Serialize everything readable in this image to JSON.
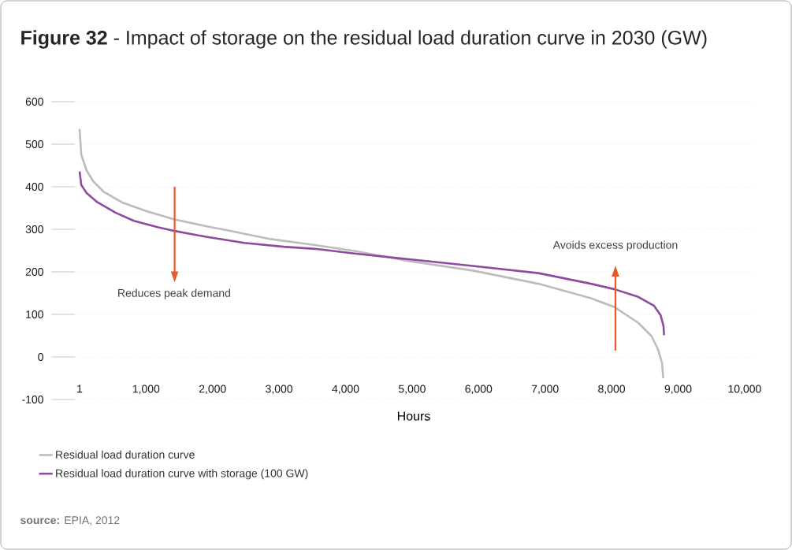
{
  "chart_data": {
    "type": "line",
    "title": "**Figure 32** - Impact of storage on the residual load duration curve in 2030 (GW)",
    "xlabel": "Hours",
    "series": [
      {
        "name": "Residual load duration curve",
        "color": "#bcbcbe",
        "x": [
          1,
          27,
          107,
          205,
          364,
          640,
          1016,
          1430,
          1884,
          2279,
          2871,
          3543,
          4136,
          4926,
          5913,
          6900,
          7691,
          8046,
          8402,
          8599,
          8698,
          8757,
          8777
        ],
        "values": [
          536,
          475,
          438,
          413,
          388,
          363,
          342,
          323,
          308,
          296,
          277,
          263,
          249,
          226,
          203,
          172,
          138,
          117,
          80,
          49,
          18,
          -13,
          -50
        ]
      },
      {
        "name": "Residual load duration curve with storage (100 GW)",
        "color": "#8e4a9e",
        "x": [
          1,
          27,
          107,
          265,
          541,
          817,
          1173,
          1430,
          1884,
          2477,
          3069,
          3543,
          4136,
          4926,
          5913,
          6900,
          7691,
          8046,
          8402,
          8639,
          8737,
          8780,
          8789
        ],
        "values": [
          436,
          404,
          385,
          364,
          339,
          320,
          305,
          296,
          283,
          268,
          259,
          254,
          243,
          230,
          214,
          197,
          172,
          159,
          141,
          120,
          98,
          73,
          51
        ]
      }
    ],
    "xlim": [
      -70,
      10120
    ],
    "ylim": [
      -100,
      600
    ],
    "xticks": [
      1,
      {
        "value": 1000,
        "label": "1,000"
      },
      {
        "value": 2000,
        "label": "2,000"
      },
      {
        "value": 3000,
        "label": "3,000"
      },
      {
        "value": 4000,
        "label": "4,000"
      },
      {
        "value": 5000,
        "label": "5,000"
      },
      {
        "value": 6000,
        "label": "6,000"
      },
      {
        "value": 7000,
        "label": "7,000"
      },
      {
        "value": 8000,
        "label": "8,000"
      },
      {
        "value": 9000,
        "label": "9,000"
      },
      {
        "value": 10000,
        "label": "10,000"
      }
    ],
    "yticks": [
      -100,
      0,
      100,
      200,
      300,
      400,
      500,
      600
    ],
    "grid": "y",
    "legend": "bottom",
    "annotations": [
      "Reduces peak demand",
      "Avoids excess production",
      "**source:** EPIA, 2012"
    ]
  }
}
